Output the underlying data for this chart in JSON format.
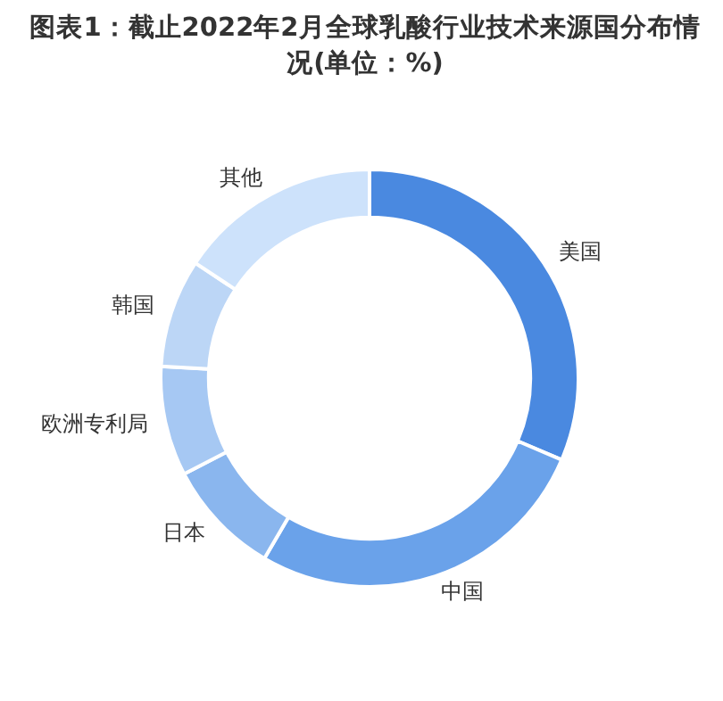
{
  "chart_data": {
    "type": "donut",
    "title": "图表1：截止2022年2月全球乳酸行业技术来源国分布情况(单位：%)",
    "categories": [
      "美国",
      "中国",
      "日本",
      "欧洲专利局",
      "韩国",
      "其他"
    ],
    "values": [
      31.4,
      27.0,
      9.0,
      8.5,
      8.4,
      15.7
    ],
    "colors": [
      "#4a89e0",
      "#6aa2ea",
      "#8ab6ee",
      "#a6c8f3",
      "#bcd6f6",
      "#cde2fb"
    ],
    "legend": false
  }
}
